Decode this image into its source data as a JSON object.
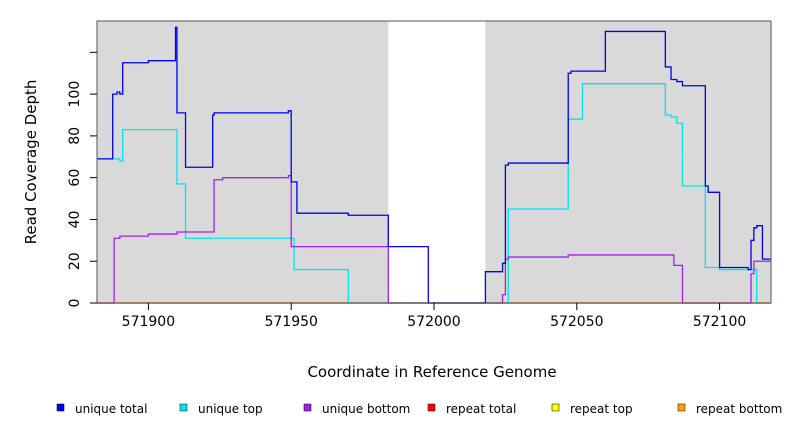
{
  "chart_data": {
    "type": "line",
    "xlabel": "Coordinate in Reference Genome",
    "ylabel": "Read Coverage Depth",
    "xlim": [
      571882,
      572118
    ],
    "ylim": [
      0,
      135
    ],
    "x_ticks": [
      571900,
      571950,
      572000,
      572050,
      572100
    ],
    "x_tick_labels": [
      "571900",
      "571950",
      "572000",
      "572050",
      "572100"
    ],
    "y_ticks": [
      0,
      20,
      40,
      60,
      80,
      100,
      120
    ],
    "y_tick_labels": [
      "0",
      "20",
      "40",
      "60",
      "80",
      "100",
      ""
    ],
    "shaded_regions": [
      [
        571882,
        571984
      ],
      [
        572018,
        572118
      ]
    ],
    "shade_color": "#d9d9d9",
    "grid": false,
    "legend_position": "bottom",
    "series": [
      {
        "name": "unique total",
        "color": "#0000ee",
        "x": [
          571882,
          571887,
          571887.5,
          571888,
          571889,
          571890,
          571891,
          571900,
          571909,
          571909.5,
          571910,
          571912,
          571913,
          571918,
          571922,
          571922.5,
          571923,
          571926,
          571945,
          571949,
          571950,
          571952,
          571960,
          571969,
          571970,
          571984,
          571998,
          572018,
          572024,
          572025,
          572026,
          572032,
          572046,
          572047,
          572048,
          572052,
          572060,
          572070,
          572080,
          572081,
          572083,
          572085,
          572087,
          572095,
          572096,
          572100,
          572110,
          572110.5,
          572111,
          572112,
          572113,
          572115,
          572118
        ],
        "y": [
          69,
          69,
          100,
          100,
          101,
          100,
          115,
          116,
          116,
          132,
          91,
          91,
          65,
          65,
          65,
          90,
          91,
          91,
          91,
          92,
          58,
          43,
          43,
          43,
          42,
          27,
          0,
          15,
          19,
          66,
          67,
          67,
          67,
          110,
          111,
          111,
          130,
          130,
          130,
          113,
          107,
          106,
          104,
          56,
          53,
          17,
          16,
          16,
          30,
          36,
          37,
          21,
          21
        ]
      },
      {
        "name": "unique top",
        "color": "#00e5ee",
        "x": [
          571882,
          571888,
          571890,
          571891,
          571900,
          571909,
          571910,
          571913,
          571930,
          571950,
          571951,
          571960,
          571970,
          571984,
          571998,
          572018,
          572026,
          572046,
          572047,
          572052,
          572060,
          572080,
          572081,
          572083,
          572085,
          572087,
          572095,
          572100,
          572110,
          572112,
          572113
        ],
        "y": [
          69,
          69,
          68,
          83,
          83,
          83,
          57,
          31,
          31,
          31,
          16,
          16,
          0,
          0,
          0,
          0,
          45,
          45,
          88,
          105,
          105,
          105,
          90,
          89,
          86,
          56,
          17,
          16,
          16,
          16,
          0
        ]
      },
      {
        "name": "unique bottom",
        "color": "#a020f0",
        "x": [
          571882,
          571887,
          571888,
          571890,
          571900,
          571910,
          571922,
          571923,
          571926,
          571949,
          571950,
          571960,
          571984,
          572018,
          572024,
          572025,
          572026,
          572046,
          572047,
          572060,
          572080,
          572084,
          572087,
          572100,
          572110,
          572111,
          572112,
          572118
        ],
        "y": [
          0,
          0,
          31,
          32,
          33,
          34,
          34,
          59,
          60,
          61,
          27,
          27,
          0,
          0,
          4,
          21,
          22,
          22,
          23,
          23,
          23,
          18,
          0,
          0,
          0,
          14,
          20,
          20
        ]
      },
      {
        "name": "repeat total",
        "color": "#ff0000",
        "x": [
          571882,
          572118
        ],
        "y": [
          0,
          0
        ]
      },
      {
        "name": "repeat top",
        "color": "#ffff00",
        "x": [
          571882,
          572118
        ],
        "y": [
          0,
          0
        ]
      },
      {
        "name": "repeat bottom",
        "color": "#ffa500",
        "x": [
          571882,
          572118
        ],
        "y": [
          0,
          0
        ]
      }
    ]
  }
}
